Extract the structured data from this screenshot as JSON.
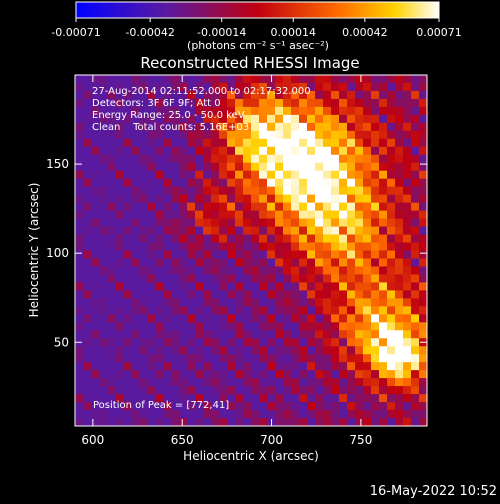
{
  "colorbar": {
    "tick_labels": [
      "-0.00071",
      "-0.00042",
      "-0.00014",
      "0.00014",
      "0.00042",
      "0.00071"
    ],
    "units_label": "(photons cm⁻² s⁻¹ asec⁻²)"
  },
  "chart_data": {
    "type": "heatmap",
    "title": "Reconstructed RHESSI Image",
    "xlabel": "Heliocentric X (arcsec)",
    "ylabel": "Heliocentric Y (arcsec)",
    "xlim": [
      590,
      787
    ],
    "ylim": [
      3,
      200
    ],
    "x_ticks": [
      600,
      650,
      700,
      750
    ],
    "y_ticks": [
      50,
      100,
      150
    ],
    "value_range": [
      -0.00071,
      0.00071
    ],
    "colormap": "blue-purple-red-orange-yellow-white",
    "annotations": [
      "27-Aug-2014 02:11:52.000 to 02:17:32.000",
      "Detectors: 3F 6F 9F; Att 0",
      "Energy Range: 25.0 - 50.0 keV",
      "Clean    Total counts: 5.16E+03"
    ],
    "peak_label": "Position of Peak = [772,41]",
    "peak_position": [
      772,
      41
    ]
  },
  "footer": {
    "timestamp": "16-May-2022 10:52"
  }
}
